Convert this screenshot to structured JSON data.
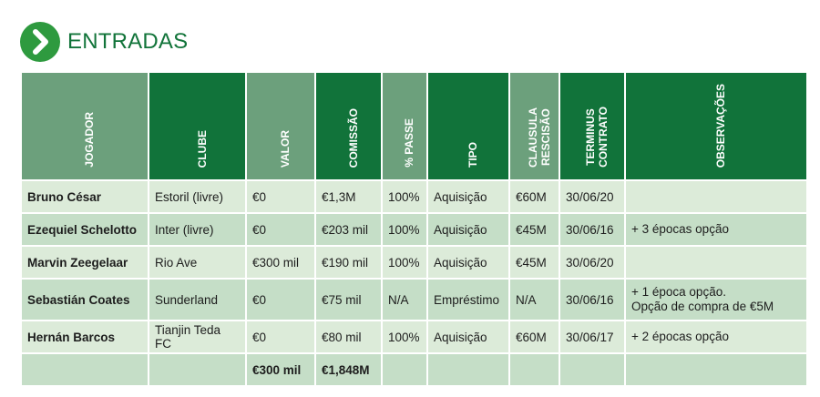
{
  "title": "ENTRADAS",
  "columns": [
    "JOGADOR",
    "CLUBE",
    "VALOR",
    "COMISSÃO",
    "% PASSE",
    "TIPO",
    "CLAUSULA\nRESCISÃO",
    "TERMINUS\nCONTRATO",
    "OBSERVAÇÕES"
  ],
  "rows": [
    {
      "jogador": "Bruno César",
      "clube": "Estoril (livre)",
      "valor": "€0",
      "comissao": "€1,3M",
      "passe": "100%",
      "tipo": "Aquisição",
      "clausula": "€60M",
      "terminus": "30/06/20",
      "obs": []
    },
    {
      "jogador": "Ezequiel Schelotto",
      "clube": "Inter (livre)",
      "valor": "€0",
      "comissao": "€203 mil",
      "passe": "100%",
      "tipo": "Aquisição",
      "clausula": "€45M",
      "terminus": "30/06/16",
      "obs": [
        "+ 3 épocas opção"
      ]
    },
    {
      "jogador": "Marvin Zeegelaar",
      "clube": "Rio Ave",
      "valor": "€300 mil",
      "comissao": "€190 mil",
      "passe": "100%",
      "tipo": "Aquisição",
      "clausula": "€45M",
      "terminus": "30/06/20",
      "obs": []
    },
    {
      "jogador": "Sebastián Coates",
      "clube": "Sunderland",
      "valor": "€0",
      "comissao": "€75 mil",
      "passe": "N/A",
      "tipo": "Empréstimo",
      "clausula": "N/A",
      "terminus": "30/06/16",
      "obs": [
        "+ 1 época opção.",
        "Opção de compra de €5M"
      ]
    },
    {
      "jogador": "Hernán Barcos",
      "clube": "Tianjin Teda FC",
      "valor": "€0",
      "comissao": "€80 mil",
      "passe": "100%",
      "tipo": "Aquisição",
      "clausula": "€60M",
      "terminus": "30/06/17",
      "obs": [
        "+ 2 épocas opção"
      ]
    }
  ],
  "totals": {
    "valor": "€300 mil",
    "comissao": "€1,848M"
  },
  "colors": {
    "header_dark": "#11733a",
    "header_light": "#6ca07c",
    "row_light": "#dcebd9",
    "row_dark": "#c5dec7",
    "title": "#12743a",
    "icon": "#2e9a3f"
  }
}
